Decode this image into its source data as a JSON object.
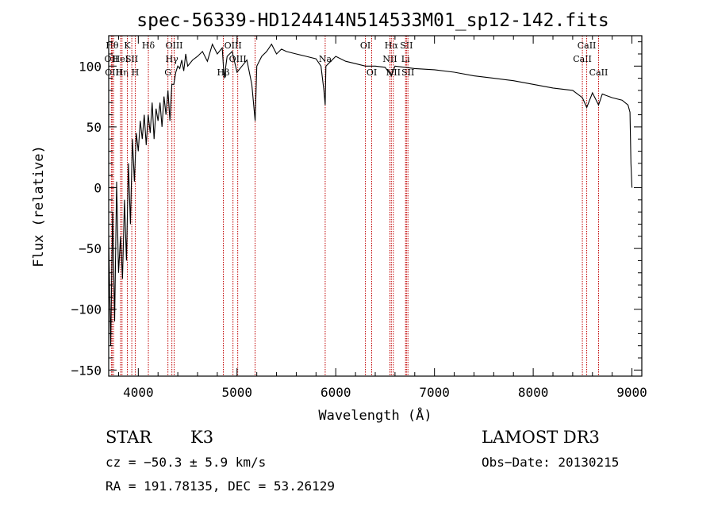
{
  "chart_data": {
    "type": "line",
    "title": "spec-56339-HD124414N514533M01_sp12-142.fits",
    "xlabel": "Wavelength (Å)",
    "ylabel": "Flux (relative)",
    "xlim": [
      3700,
      9100
    ],
    "ylim": [
      -155,
      125
    ],
    "xticks": [
      4000,
      5000,
      6000,
      7000,
      8000,
      9000
    ],
    "yticks": [
      -150,
      -100,
      -50,
      0,
      50,
      100
    ],
    "series": [
      {
        "name": "flux",
        "x": [
          3700,
          3720,
          3740,
          3760,
          3780,
          3800,
          3820,
          3840,
          3860,
          3880,
          3900,
          3920,
          3940,
          3960,
          3980,
          4000,
          4020,
          4040,
          4060,
          4080,
          4100,
          4120,
          4140,
          4160,
          4180,
          4200,
          4220,
          4240,
          4260,
          4280,
          4300,
          4320,
          4340,
          4360,
          4380,
          4400,
          4420,
          4440,
          4460,
          4480,
          4500,
          4550,
          4600,
          4650,
          4700,
          4750,
          4800,
          4850,
          4870,
          4900,
          4950,
          5000,
          5050,
          5100,
          5150,
          5183,
          5200,
          5250,
          5300,
          5350,
          5400,
          5450,
          5500,
          5600,
          5700,
          5800,
          5850,
          5880,
          5893,
          5900,
          5950,
          6000,
          6100,
          6200,
          6300,
          6400,
          6500,
          6563,
          6600,
          6700,
          6800,
          7000,
          7200,
          7400,
          7600,
          7800,
          8000,
          8200,
          8400,
          8498,
          8542,
          8600,
          8662,
          8700,
          8800,
          8900,
          8960,
          8980,
          8990,
          9000
        ],
        "y": [
          -40,
          -130,
          -20,
          -110,
          5,
          -70,
          -40,
          -75,
          -10,
          -60,
          20,
          -30,
          40,
          5,
          45,
          30,
          55,
          40,
          60,
          35,
          60,
          45,
          70,
          40,
          65,
          55,
          70,
          50,
          75,
          60,
          80,
          55,
          85,
          85,
          95,
          100,
          98,
          105,
          96,
          110,
          100,
          105,
          108,
          112,
          104,
          118,
          110,
          115,
          90,
          108,
          112,
          95,
          100,
          105,
          85,
          55,
          100,
          108,
          112,
          118,
          110,
          114,
          112,
          110,
          108,
          106,
          100,
          80,
          68,
          100,
          104,
          108,
          104,
          102,
          100,
          100,
          99,
          92,
          100,
          99,
          98,
          97,
          95,
          92,
          90,
          88,
          85,
          82,
          80,
          74,
          66,
          78,
          68,
          77,
          74,
          72,
          68,
          62,
          20,
          0
        ]
      }
    ],
    "lines": [
      {
        "wave": 3735,
        "label": "Hθ",
        "row": 1
      },
      {
        "wave": 3727,
        "label": "OII",
        "row": 2
      },
      {
        "wave": 3750,
        "label": "OIII",
        "row": 3
      },
      {
        "wave": 3820,
        "label": "HeI",
        "row": 2
      },
      {
        "wave": 3835,
        "label": "Hη",
        "row": 3
      },
      {
        "wave": 3889,
        "label": "K",
        "row": 1
      },
      {
        "wave": 3934,
        "label": "SII",
        "row": 2
      },
      {
        "wave": 3969,
        "label": "H",
        "row": 3
      },
      {
        "wave": 4102,
        "label": "Hδ",
        "row": 1
      },
      {
        "wave": 4300,
        "label": "G",
        "row": 3
      },
      {
        "wave": 4340,
        "label": "Hγ",
        "row": 2
      },
      {
        "wave": 4363,
        "label": "OIII",
        "row": 1
      },
      {
        "wave": 4861,
        "label": "Hβ",
        "row": 3
      },
      {
        "wave": 4959,
        "label": "OIII",
        "row": 1
      },
      {
        "wave": 5007,
        "label": "OIII",
        "row": 2
      },
      {
        "wave": 5183,
        "label": "",
        "row": 0
      },
      {
        "wave": 5893,
        "label": "Na",
        "row": 2
      },
      {
        "wave": 6300,
        "label": "OI",
        "row": 1
      },
      {
        "wave": 6364,
        "label": "OI",
        "row": 3
      },
      {
        "wave": 6548,
        "label": "NII",
        "row": 2
      },
      {
        "wave": 6563,
        "label": "Hα",
        "row": 1
      },
      {
        "wave": 6583,
        "label": "NII",
        "row": 3
      },
      {
        "wave": 6707,
        "label": "Li",
        "row": 2
      },
      {
        "wave": 6716,
        "label": "SII",
        "row": 1
      },
      {
        "wave": 6731,
        "label": "SII",
        "row": 3
      },
      {
        "wave": 8498,
        "label": "CaII",
        "row": 2
      },
      {
        "wave": 8542,
        "label": "CaII",
        "row": 1
      },
      {
        "wave": 8662,
        "label": "CaII",
        "row": 3
      }
    ]
  },
  "info": {
    "class": "STAR",
    "subclass": "K3",
    "survey": "LAMOST DR3",
    "cz": "cz = −50.3 ± 5.9 km/s",
    "obsdate": "Obs−Date: 20130215",
    "radec": "RA = 191.78135, DEC =  53.26129"
  }
}
